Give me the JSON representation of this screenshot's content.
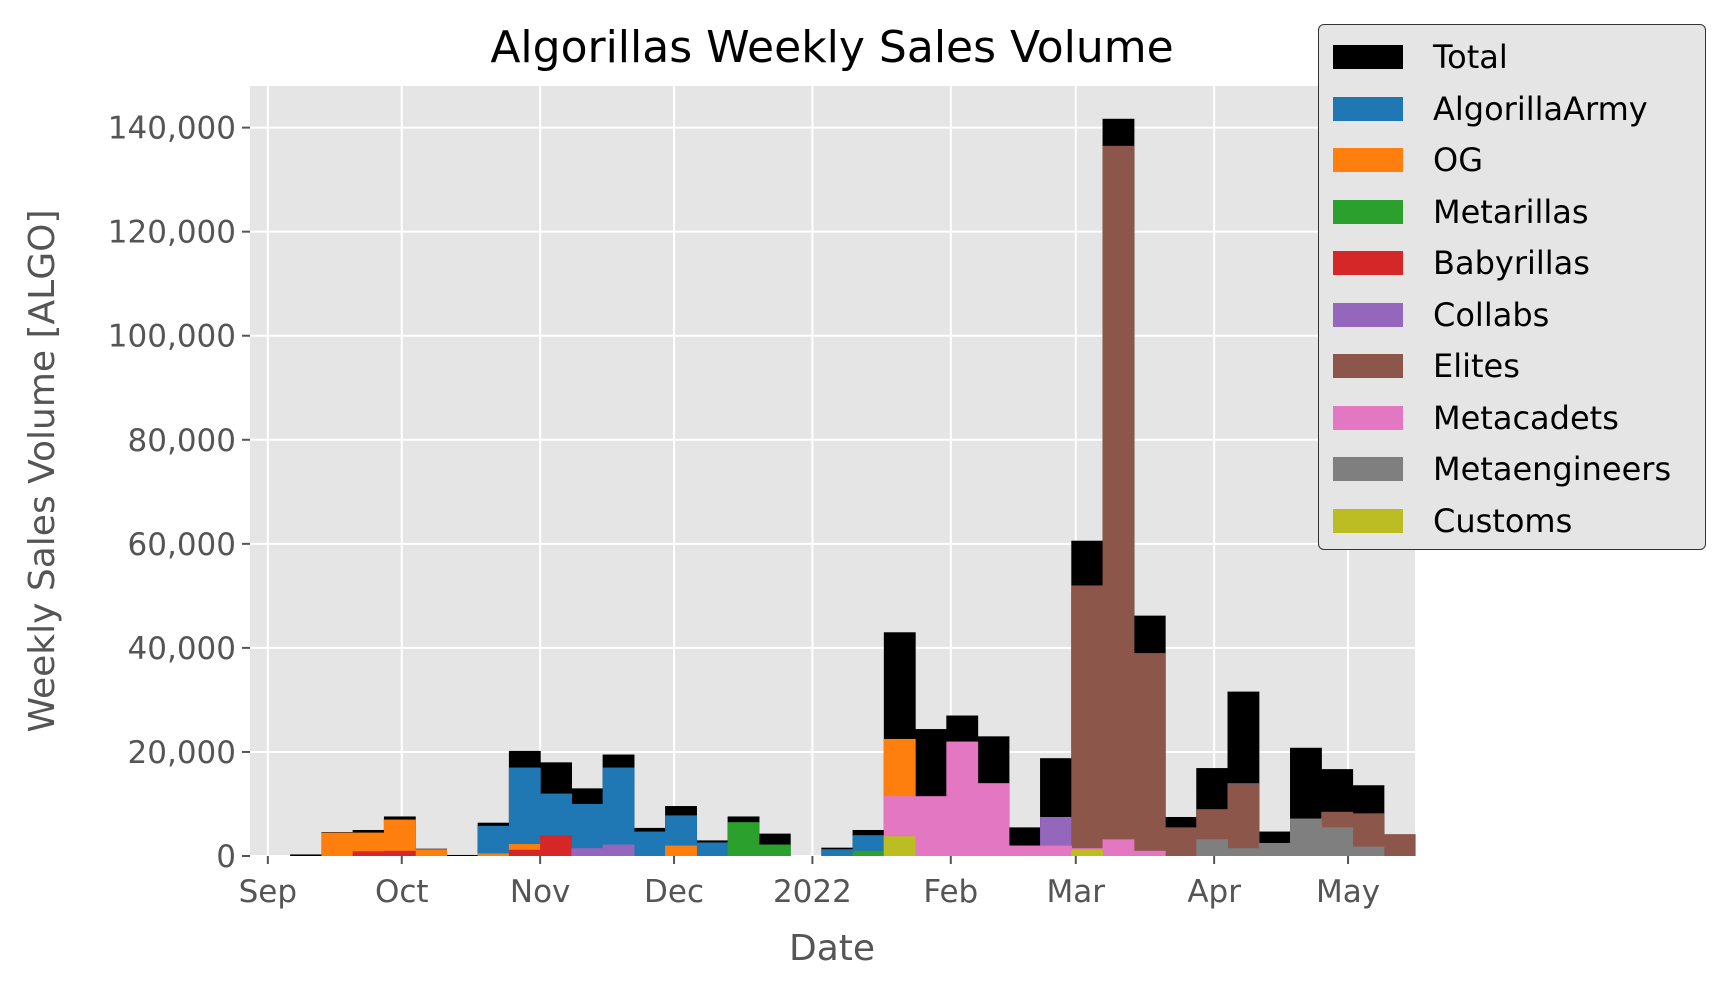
{
  "chart_data": {
    "type": "bar",
    "stacked": "overlaid",
    "title": "Algorillas Weekly Sales Volume",
    "xlabel": "Date",
    "ylabel": "Weekly Sales Volume [ALGO]",
    "ylim": [
      0,
      148000
    ],
    "xlim": [
      "2021-08-28",
      "2022-05-16"
    ],
    "grid": true,
    "legend_position": "top-right, outside plot",
    "x_ticks": [
      {
        "date": "2021-09-01",
        "label": "Sep"
      },
      {
        "date": "2021-10-01",
        "label": "Oct"
      },
      {
        "date": "2021-11-01",
        "label": "Nov"
      },
      {
        "date": "2021-12-01",
        "label": "Dec"
      },
      {
        "date": "2022-01-01",
        "label": "2022"
      },
      {
        "date": "2022-02-01",
        "label": "Feb"
      },
      {
        "date": "2022-03-01",
        "label": "Mar"
      },
      {
        "date": "2022-04-01",
        "label": "Apr"
      },
      {
        "date": "2022-05-01",
        "label": "May"
      }
    ],
    "y_ticks": [
      {
        "value": 0,
        "label": "0"
      },
      {
        "value": 20000,
        "label": "20,000"
      },
      {
        "value": 40000,
        "label": "40,000"
      },
      {
        "value": 60000,
        "label": "60,000"
      },
      {
        "value": 80000,
        "label": "80,000"
      },
      {
        "value": 100000,
        "label": "100,000"
      },
      {
        "value": 120000,
        "label": "120,000"
      },
      {
        "value": 140000,
        "label": "140,000"
      }
    ],
    "bar_width_days": 7,
    "weeks": [
      "2021-09-06",
      "2021-09-13",
      "2021-09-20",
      "2021-09-27",
      "2021-10-04",
      "2021-10-11",
      "2021-10-18",
      "2021-10-25",
      "2021-11-01",
      "2021-11-08",
      "2021-11-15",
      "2021-11-22",
      "2021-11-29",
      "2021-12-06",
      "2021-12-13",
      "2021-12-20",
      "2021-12-27",
      "2022-01-03",
      "2022-01-10",
      "2022-01-17",
      "2022-01-24",
      "2022-01-31",
      "2022-02-07",
      "2022-02-14",
      "2022-02-21",
      "2022-02-28",
      "2022-03-07",
      "2022-03-14",
      "2022-03-21",
      "2022-03-28",
      "2022-04-04",
      "2022-04-11",
      "2022-04-18",
      "2022-04-25",
      "2022-05-02",
      "2022-05-09"
    ],
    "series": [
      {
        "name": "Total",
        "color": "#000000",
        "values": [
          300,
          4600,
          5000,
          7600,
          1400,
          200,
          6400,
          20200,
          18000,
          13000,
          19500,
          5400,
          9600,
          3000,
          7600,
          4300,
          0,
          1600,
          5000,
          43000,
          24400,
          27000,
          23000,
          5500,
          18800,
          60600,
          141700,
          46200,
          7500,
          16900,
          31600,
          4700,
          20800,
          16700,
          13600,
          0
        ]
      },
      {
        "name": "AlgorillaArmy",
        "color": "#1f77b4",
        "values": [
          0,
          0,
          0,
          0,
          0,
          0,
          5800,
          17000,
          12000,
          10000,
          17000,
          4700,
          7800,
          2600,
          0,
          0,
          0,
          1300,
          4000,
          0,
          0,
          0,
          0,
          2000,
          0,
          0,
          0,
          0,
          0,
          0,
          14000,
          0,
          0,
          0,
          0,
          0
        ]
      },
      {
        "name": "OG",
        "color": "#ff7f0e",
        "values": [
          0,
          4500,
          4500,
          7000,
          1300,
          0,
          500,
          2300,
          0,
          0,
          0,
          0,
          2000,
          0,
          0,
          0,
          0,
          0,
          0,
          22500,
          0,
          0,
          0,
          0,
          0,
          0,
          0,
          0,
          0,
          0,
          0,
          0,
          0,
          0,
          0,
          0
        ]
      },
      {
        "name": "Metarillas",
        "color": "#2ca02c",
        "values": [
          0,
          0,
          0,
          0,
          0,
          0,
          0,
          0,
          0,
          0,
          0,
          0,
          0,
          0,
          6500,
          2200,
          0,
          0,
          1000,
          0,
          0,
          0,
          0,
          0,
          0,
          0,
          0,
          0,
          0,
          0,
          0,
          0,
          0,
          0,
          0,
          0
        ]
      },
      {
        "name": "Babyrillas",
        "color": "#d62728",
        "values": [
          0,
          0,
          900,
          1000,
          0,
          0,
          0,
          1200,
          4000,
          0,
          0,
          0,
          0,
          0,
          0,
          0,
          0,
          0,
          0,
          0,
          0,
          0,
          0,
          0,
          0,
          0,
          0,
          0,
          0,
          0,
          0,
          0,
          0,
          0,
          0,
          0
        ]
      },
      {
        "name": "Collabs",
        "color": "#9467bd",
        "values": [
          0,
          0,
          0,
          0,
          0,
          0,
          0,
          0,
          0,
          1500,
          2200,
          0,
          0,
          0,
          0,
          0,
          0,
          0,
          0,
          0,
          0,
          0,
          0,
          0,
          7500,
          0,
          0,
          0,
          0,
          0,
          0,
          0,
          0,
          0,
          0,
          0
        ]
      },
      {
        "name": "Elites",
        "color": "#8c564b",
        "values": [
          0,
          0,
          0,
          0,
          0,
          0,
          0,
          0,
          0,
          0,
          0,
          0,
          0,
          0,
          0,
          0,
          0,
          0,
          0,
          0,
          0,
          0,
          0,
          0,
          0,
          52000,
          136500,
          39000,
          5500,
          9000,
          13800,
          0,
          0,
          8500,
          8200,
          4200
        ]
      },
      {
        "name": "Metacadets",
        "color": "#e377c2",
        "values": [
          0,
          0,
          0,
          0,
          0,
          0,
          0,
          0,
          0,
          0,
          0,
          0,
          0,
          0,
          0,
          0,
          0,
          0,
          0,
          11500,
          11500,
          22000,
          14000,
          2000,
          2000,
          1500,
          3200,
          1000,
          0,
          0,
          0,
          0,
          0,
          0,
          0,
          0
        ]
      },
      {
        "name": "Metaengineers",
        "color": "#7f7f7f",
        "values": [
          0,
          0,
          0,
          0,
          0,
          0,
          0,
          0,
          0,
          0,
          0,
          0,
          0,
          0,
          0,
          0,
          0,
          0,
          0,
          0,
          0,
          0,
          0,
          0,
          0,
          0,
          0,
          0,
          0,
          3200,
          1500,
          2500,
          7200,
          5500,
          1800,
          0
        ]
      },
      {
        "name": "Customs",
        "color": "#bcbd22",
        "values": [
          0,
          0,
          0,
          0,
          0,
          0,
          0,
          0,
          0,
          0,
          0,
          0,
          0,
          0,
          0,
          0,
          0,
          0,
          0,
          3800,
          0,
          0,
          0,
          0,
          0,
          1200,
          0,
          0,
          0,
          0,
          0,
          0,
          0,
          0,
          0,
          0
        ]
      }
    ]
  }
}
